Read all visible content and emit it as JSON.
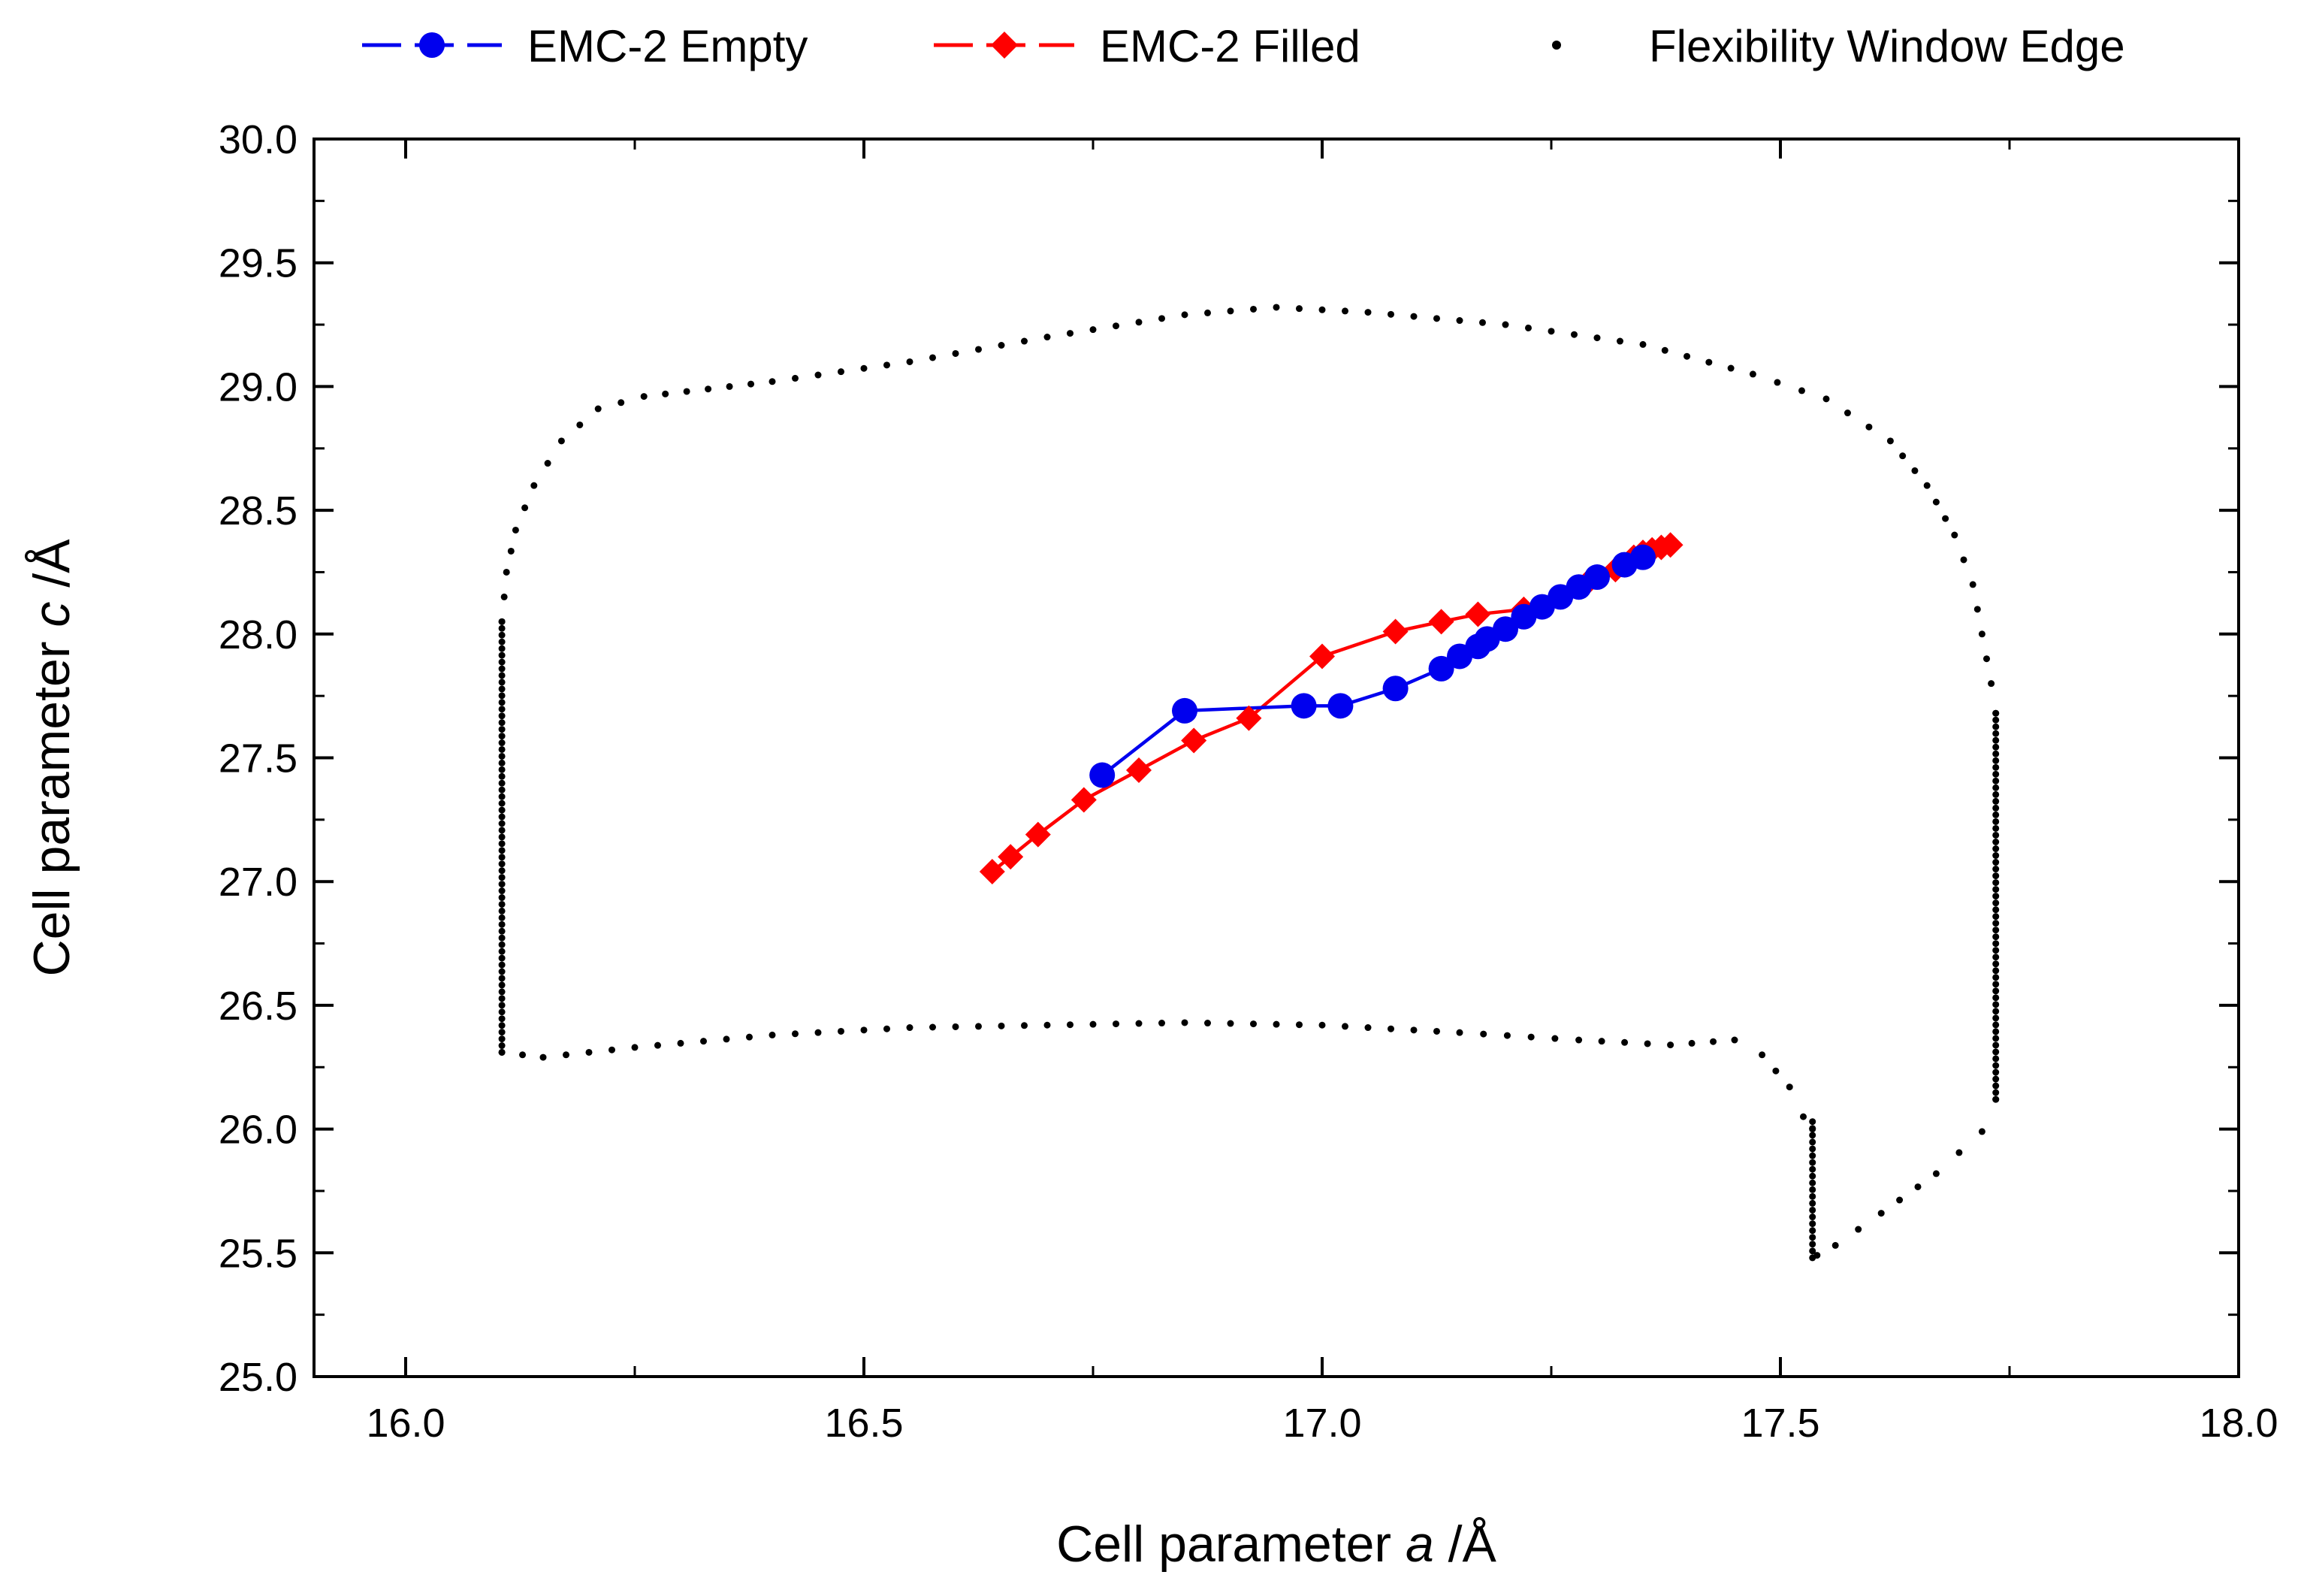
{
  "chart_data": {
    "type": "scatter",
    "title": "",
    "xlabel": {
      "prefix": "Cell parameter ",
      "var": "a",
      "suffix": " /Å"
    },
    "ylabel": {
      "prefix": "Cell parameter ",
      "var": "c",
      "suffix": " /Å"
    },
    "xlim": [
      15.9,
      18.0
    ],
    "ylim": [
      25.0,
      30.0
    ],
    "xticks": [
      16.0,
      16.5,
      17.0,
      17.5,
      18.0
    ],
    "xtick_labels": [
      "16.0",
      "16.5",
      "17.0",
      "17.5",
      "18.0"
    ],
    "yticks": [
      25.0,
      25.5,
      26.0,
      26.5,
      27.0,
      27.5,
      28.0,
      28.5,
      29.0,
      29.5,
      30.0
    ],
    "ytick_labels": [
      "25.0",
      "25.5",
      "26.0",
      "26.5",
      "27.0",
      "27.5",
      "28.0",
      "28.5",
      "29.0",
      "29.5",
      "30.0"
    ],
    "legend_position": "top",
    "series": [
      {
        "name": "EMC-2 Empty",
        "color": "#0000ee",
        "marker": "circle",
        "line": "dashed",
        "x": [
          16.76,
          16.85,
          16.98,
          17.02,
          17.08,
          17.13,
          17.15,
          17.17,
          17.18,
          17.2,
          17.22,
          17.24,
          17.26,
          17.28,
          17.3,
          17.33,
          17.35
        ],
        "y": [
          27.43,
          27.69,
          27.71,
          27.71,
          27.78,
          27.86,
          27.91,
          27.95,
          27.98,
          28.02,
          28.07,
          28.11,
          28.15,
          28.19,
          28.23,
          28.28,
          28.31
        ]
      },
      {
        "name": "EMC-2 Filled",
        "color": "#ff0000",
        "marker": "diamond",
        "line": "dashed",
        "x": [
          16.64,
          16.66,
          16.69,
          16.74,
          16.8,
          16.86,
          16.92,
          17.0,
          17.08,
          17.13,
          17.17,
          17.22,
          17.26,
          17.29,
          17.32,
          17.34,
          17.35,
          17.36,
          17.37,
          17.38
        ],
        "y": [
          27.04,
          27.1,
          27.19,
          27.33,
          27.45,
          27.57,
          27.66,
          27.91,
          28.01,
          28.05,
          28.08,
          28.1,
          28.15,
          28.21,
          28.26,
          28.31,
          28.33,
          28.34,
          28.35,
          28.36
        ]
      },
      {
        "name": "Flexibility Window Edge",
        "color": "#000000",
        "marker": "dot",
        "line": "none",
        "curve": {
          "left_x": 16.105,
          "left_y_range": [
            26.31,
            28.05
          ],
          "top": [
            [
              16.105,
              28.05
            ],
            [
              16.11,
              28.25
            ],
            [
              16.12,
              28.42
            ],
            [
              16.14,
              28.6
            ],
            [
              16.17,
              28.78
            ],
            [
              16.21,
              28.91
            ],
            [
              16.26,
              28.96
            ],
            [
              16.4,
              29.02
            ],
            [
              16.55,
              29.1
            ],
            [
              16.7,
              29.2
            ],
            [
              16.85,
              29.29
            ],
            [
              16.95,
              29.32
            ],
            [
              17.05,
              29.3
            ],
            [
              17.2,
              29.25
            ],
            [
              17.35,
              29.17
            ],
            [
              17.47,
              29.05
            ],
            [
              17.55,
              28.95
            ],
            [
              17.62,
              28.78
            ],
            [
              17.66,
              28.6
            ],
            [
              17.69,
              28.4
            ],
            [
              17.71,
              28.2
            ],
            [
              17.72,
              28.0
            ],
            [
              17.73,
              27.8
            ],
            [
              17.735,
              27.68
            ]
          ],
          "right_x": 17.735,
          "right_y_range": [
            26.12,
            27.68
          ],
          "right_tail": [
            [
              17.735,
              26.12
            ],
            [
              17.72,
              25.99
            ],
            [
              17.67,
              25.82
            ],
            [
              17.61,
              25.66
            ],
            [
              17.56,
              25.53
            ],
            [
              17.54,
              25.49
            ]
          ],
          "notch_x": 17.535,
          "notch_y_range": [
            25.48,
            26.03
          ],
          "bottom": [
            [
              16.105,
              26.31
            ],
            [
              16.15,
              26.29
            ],
            [
              16.25,
              26.33
            ],
            [
              16.4,
              26.38
            ],
            [
              16.55,
              26.41
            ],
            [
              16.7,
              26.42
            ],
            [
              16.85,
              26.43
            ],
            [
              17.0,
              26.42
            ],
            [
              17.15,
              26.39
            ],
            [
              17.28,
              26.36
            ],
            [
              17.38,
              26.34
            ],
            [
              17.45,
              26.36
            ],
            [
              17.48,
              26.3
            ],
            [
              17.51,
              26.17
            ],
            [
              17.525,
              26.05
            ],
            [
              17.535,
              26.0
            ]
          ]
        }
      }
    ]
  }
}
